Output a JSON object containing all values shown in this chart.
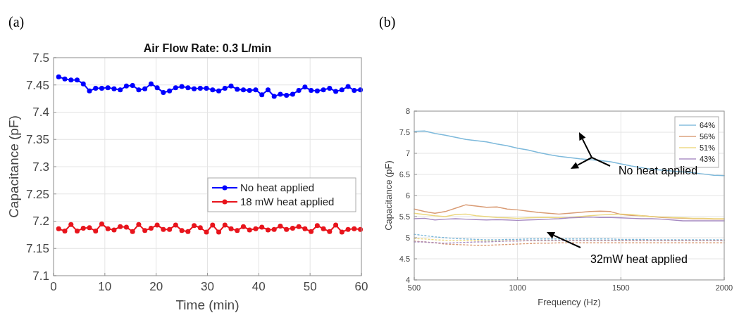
{
  "chart_data": [
    {
      "type": "line",
      "title": "Air Flow Rate: 0.3 L/min",
      "xlabel": "Time (min)",
      "ylabel": "Capacitance (pF)",
      "annotations": [
        "(a)"
      ],
      "x": [
        1,
        2.2,
        3.4,
        4.6,
        5.8,
        7,
        8.2,
        9.4,
        10.6,
        11.8,
        13,
        14.2,
        15.4,
        16.6,
        17.8,
        19,
        20.2,
        21.4,
        22.6,
        23.8,
        25,
        26.2,
        27.4,
        28.6,
        29.8,
        31,
        32.2,
        33.4,
        34.6,
        35.8,
        37,
        38.2,
        39.4,
        40.6,
        41.8,
        43,
        44.2,
        45.4,
        46.6,
        47.8,
        49,
        50.2,
        51.4,
        52.6,
        53.8,
        55,
        56.2,
        57.4,
        58.6,
        59.8
      ],
      "series": [
        {
          "name": "No heat applied",
          "color": "#0000ff",
          "values": [
            7.465,
            7.461,
            7.459,
            7.459,
            7.452,
            7.439,
            7.444,
            7.444,
            7.445,
            7.443,
            7.441,
            7.448,
            7.449,
            7.441,
            7.443,
            7.452,
            7.445,
            7.436,
            7.439,
            7.445,
            7.447,
            7.445,
            7.443,
            7.444,
            7.444,
            7.441,
            7.439,
            7.444,
            7.448,
            7.442,
            7.441,
            7.44,
            7.441,
            7.432,
            7.441,
            7.429,
            7.433,
            7.431,
            7.433,
            7.44,
            7.446,
            7.44,
            7.439,
            7.441,
            7.444,
            7.438,
            7.441,
            7.447,
            7.44,
            7.441
          ]
        },
        {
          "name": "18 mW heat applied",
          "color": "#e8141c",
          "values": [
            7.186,
            7.182,
            7.194,
            7.182,
            7.187,
            7.188,
            7.182,
            7.195,
            7.186,
            7.184,
            7.19,
            7.189,
            7.181,
            7.194,
            7.183,
            7.187,
            7.193,
            7.185,
            7.185,
            7.193,
            7.183,
            7.181,
            7.192,
            7.188,
            7.18,
            7.193,
            7.18,
            7.193,
            7.186,
            7.183,
            7.19,
            7.184,
            7.186,
            7.189,
            7.184,
            7.185,
            7.191,
            7.185,
            7.187,
            7.19,
            7.186,
            7.181,
            7.192,
            7.186,
            7.181,
            7.193,
            7.18,
            7.185,
            7.186,
            7.185
          ]
        }
      ],
      "xlim": [
        0,
        60
      ],
      "xticks": [
        0,
        10,
        20,
        30,
        40,
        50,
        60
      ],
      "ylim": [
        7.1,
        7.5
      ],
      "yticks": [
        7.1,
        7.15,
        7.2,
        7.25,
        7.3,
        7.35,
        7.4,
        7.45,
        7.5
      ],
      "grid": true,
      "legend": "right",
      "marker": "circle",
      "line_style": "solid"
    },
    {
      "type": "line",
      "xlabel": "Frequency (Hz)",
      "ylabel": "Capacitance (pF)",
      "annotations": [
        "(b)",
        "No heat applied",
        "32mW heat applied"
      ],
      "x": [
        500,
        550,
        600,
        650,
        700,
        750,
        800,
        850,
        900,
        950,
        1000,
        1050,
        1100,
        1150,
        1200,
        1250,
        1300,
        1350,
        1400,
        1450,
        1500,
        1550,
        1600,
        1650,
        1700,
        1750,
        1800,
        1850,
        1900,
        1950,
        2000
      ],
      "series": [
        {
          "name": "64%",
          "color": "#7db9db",
          "values": [
            7.52,
            7.53,
            7.47,
            7.43,
            7.38,
            7.33,
            7.3,
            7.27,
            7.22,
            7.18,
            7.12,
            7.08,
            7.02,
            6.97,
            6.93,
            6.9,
            6.87,
            6.85,
            6.83,
            6.8,
            6.75,
            6.7,
            6.66,
            6.62,
            6.6,
            6.58,
            6.56,
            6.54,
            6.51,
            6.48,
            6.47
          ]
        },
        {
          "name": "56%",
          "color": "#d99b74",
          "values": [
            5.68,
            5.62,
            5.58,
            5.62,
            5.7,
            5.78,
            5.75,
            5.72,
            5.73,
            5.68,
            5.66,
            5.63,
            5.6,
            5.58,
            5.56,
            5.58,
            5.6,
            5.62,
            5.63,
            5.62,
            5.55,
            5.53,
            5.52,
            5.5,
            5.48,
            5.47,
            5.46,
            5.45,
            5.45,
            5.44,
            5.44
          ]
        },
        {
          "name": "51%",
          "color": "#ecd77e",
          "values": [
            5.58,
            5.55,
            5.52,
            5.5,
            5.55,
            5.56,
            5.52,
            5.5,
            5.48,
            5.47,
            5.46,
            5.47,
            5.48,
            5.48,
            5.47,
            5.48,
            5.5,
            5.52,
            5.54,
            5.55,
            5.56,
            5.55,
            5.52,
            5.5,
            5.49,
            5.48,
            5.47,
            5.46,
            5.46,
            5.45,
            5.45
          ]
        },
        {
          "name": "43%",
          "color": "#a68ac2",
          "values": [
            5.45,
            5.46,
            5.42,
            5.44,
            5.45,
            5.44,
            5.43,
            5.42,
            5.43,
            5.42,
            5.41,
            5.42,
            5.43,
            5.44,
            5.45,
            5.47,
            5.48,
            5.49,
            5.48,
            5.48,
            5.47,
            5.46,
            5.45,
            5.45,
            5.44,
            5.42,
            5.4,
            5.4,
            5.4,
            5.4,
            5.4
          ]
        },
        {
          "color": "#7db9db",
          "line_style": "dotted",
          "values": [
            5.08,
            5.05,
            5.02,
            5.0,
            4.98,
            4.97,
            4.96,
            4.95,
            4.95,
            4.96,
            4.96,
            4.97,
            4.97,
            4.97,
            4.97,
            4.97,
            4.97,
            4.97,
            4.97,
            4.97,
            4.96,
            4.96,
            4.96,
            4.95,
            4.95,
            4.95,
            4.95,
            4.95,
            4.95,
            4.95,
            4.95
          ]
        },
        {
          "color": "#d99b74",
          "line_style": "dotted",
          "values": [
            4.92,
            4.9,
            4.88,
            4.85,
            4.84,
            4.83,
            4.82,
            4.82,
            4.83,
            4.84,
            4.85,
            4.86,
            4.87,
            4.87,
            4.88,
            4.88,
            4.88,
            4.88,
            4.88,
            4.88,
            4.88,
            4.88,
            4.88,
            4.88,
            4.88,
            4.88,
            4.88,
            4.88,
            4.88,
            4.88,
            4.88
          ]
        },
        {
          "color": "#ecd77e",
          "line_style": "dotted",
          "values": [
            4.98,
            4.97,
            4.95,
            4.94,
            4.93,
            4.93,
            4.93,
            4.92,
            4.92,
            4.93,
            4.93,
            4.93,
            4.94,
            4.94,
            4.94,
            4.94,
            4.94,
            4.94,
            4.94,
            4.94,
            4.94,
            4.94,
            4.94,
            4.94,
            4.94,
            4.94,
            4.94,
            4.94,
            4.94,
            4.94,
            4.94
          ]
        },
        {
          "color": "#a68ac2",
          "line_style": "dotted",
          "values": [
            4.9,
            4.9,
            4.88,
            4.87,
            4.88,
            4.89,
            4.9,
            4.9,
            4.91,
            4.92,
            4.92,
            4.93,
            4.93,
            4.93,
            4.93,
            4.93,
            4.93,
            4.93,
            4.93,
            4.93,
            4.93,
            4.93,
            4.93,
            4.93,
            4.93,
            4.93,
            4.93,
            4.93,
            4.93,
            4.93,
            4.93
          ]
        }
      ],
      "xlim": [
        500,
        2000
      ],
      "xticks": [
        500,
        1000,
        1500,
        2000
      ],
      "ylim": [
        4,
        8
      ],
      "yticks": [
        4,
        4.5,
        5,
        5.5,
        6,
        6.5,
        7,
        7.5,
        8
      ],
      "grid": true,
      "legend": "top right",
      "marker": "none",
      "line_style": "solid"
    }
  ]
}
